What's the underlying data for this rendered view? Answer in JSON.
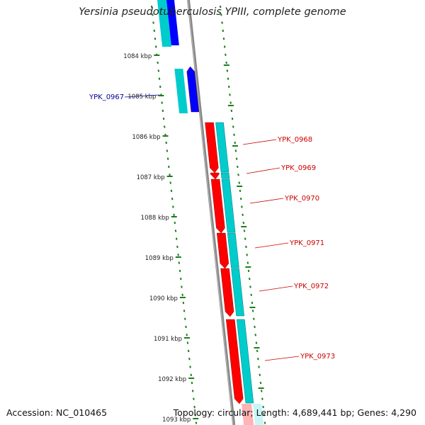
{
  "title": "Yersinia pseudotuberculosis YPIII, complete genome",
  "accession": "Accession: NC_010465",
  "stats": "Topology: circular; Length: 4,689,441 bp; Genes: 4,290",
  "colors": {
    "cds_forward": "#ff0000",
    "cds_reverse": "#0000ff",
    "cds_feature": "#00cccc",
    "backbone": "#888888",
    "tick": "#1a7f1a",
    "label_forward": "#cc0000",
    "label_reverse": "#000099"
  },
  "kbp_labels": [
    "1084 kbp",
    "1085 kbp",
    "1086 kbp",
    "1087 kbp",
    "1088 kbp",
    "1089 kbp",
    "1090 kbp",
    "1091 kbp",
    "1092 kbp",
    "1093 kbp"
  ],
  "genes": [
    {
      "label": "YPK_0967",
      "strand": "reverse"
    },
    {
      "label": "YPK_0968",
      "strand": "forward"
    },
    {
      "label": "YPK_0969",
      "strand": "forward"
    },
    {
      "label": "YPK_0970",
      "strand": "forward"
    },
    {
      "label": "YPK_0971",
      "strand": "forward"
    },
    {
      "label": "YPK_0972",
      "strand": "forward"
    },
    {
      "label": "YPK_0973",
      "strand": "forward"
    }
  ]
}
